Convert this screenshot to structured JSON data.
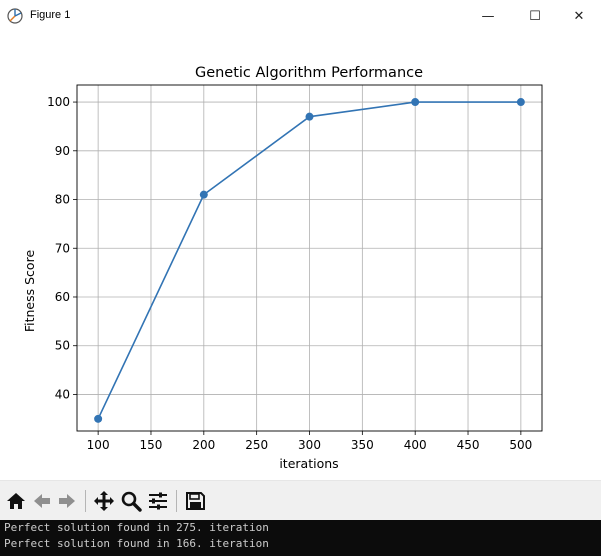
{
  "window": {
    "title": "Figure 1",
    "minimize_glyph": "—",
    "maximize_glyph": "☐",
    "close_glyph": "✕",
    "app_icon": "matplotlib-figure-icon"
  },
  "chart_data": {
    "type": "line",
    "title": "Genetic Algorithm Performance",
    "xlabel": "iterations",
    "ylabel": "Fitness Score",
    "x": [
      100,
      200,
      300,
      400,
      500
    ],
    "series": [
      {
        "values": [
          35,
          81,
          97,
          100,
          100
        ],
        "color": "#3274b4",
        "marker": "circle"
      }
    ],
    "xlim": [
      80,
      520
    ],
    "ylim": [
      32.5,
      103.5
    ],
    "xticks": [
      100,
      150,
      200,
      250,
      300,
      350,
      400,
      450,
      500
    ],
    "yticks": [
      40,
      50,
      60,
      70,
      80,
      90,
      100
    ],
    "grid": true,
    "legend": "none"
  },
  "toolbar": {
    "icons": [
      "home-icon",
      "back-arrow-icon",
      "forward-arrow-icon",
      "pan-icon",
      "zoom-icon",
      "configure-subplots-icon",
      "save-icon"
    ]
  },
  "console": {
    "lines": [
      "Perfect solution found in 275. iteration",
      "Perfect solution found in 166. iteration"
    ],
    "background": "#0c0c0c",
    "text_color": "#cccccc"
  }
}
